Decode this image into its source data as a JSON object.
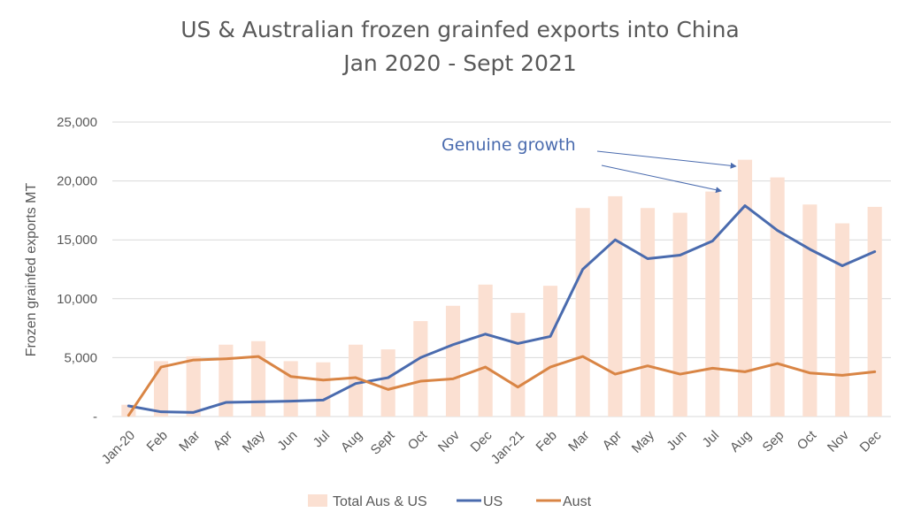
{
  "chart_data": {
    "type": "bar",
    "title": "US & Australian frozen grainfed exports into China",
    "subtitle": "Jan 2020 - Sept 2021",
    "xlabel": "",
    "ylabel": "Frozen grainfed exports MT",
    "ylim": [
      0,
      25000
    ],
    "ytick_labels": [
      "-",
      "5,000",
      "10,000",
      "15,000",
      "20,000",
      "25,000"
    ],
    "grid": true,
    "legend_position": "bottom",
    "categories": [
      "Jan-20",
      "Feb",
      "Mar",
      "Apr",
      "May",
      "Jun",
      "Jul",
      "Aug",
      "Sept",
      "Oct",
      "Nov",
      "Dec",
      "Jan-21",
      "Feb",
      "Mar",
      "Apr",
      "May",
      "Jun",
      "Jul",
      "Aug",
      "Sep",
      "Oct",
      "Nov",
      "Dec"
    ],
    "series": [
      {
        "name": "Total Aus & US",
        "type": "bar",
        "color": "#FBE0D2",
        "values": [
          1000,
          4700,
          5100,
          6100,
          6400,
          4700,
          4600,
          6100,
          5700,
          8100,
          9400,
          11200,
          8800,
          11100,
          17700,
          18700,
          17700,
          17300,
          19100,
          21800,
          20300,
          18000,
          16400,
          17800
        ]
      },
      {
        "name": "US",
        "type": "line",
        "color": "#4A6BAE",
        "values": [
          900,
          400,
          350,
          1200,
          1250,
          1300,
          1400,
          2800,
          3300,
          5000,
          6100,
          7000,
          6200,
          6800,
          12500,
          15000,
          13400,
          13700,
          14900,
          17900,
          15800,
          14200,
          12800,
          14000
        ]
      },
      {
        "name": "Aust",
        "type": "line",
        "color": "#D98545",
        "values": [
          100,
          4200,
          4800,
          4900,
          5100,
          3400,
          3100,
          3300,
          2300,
          3000,
          3200,
          4200,
          2500,
          4200,
          5100,
          3600,
          4300,
          3600,
          4100,
          3800,
          4500,
          3700,
          3500,
          3800
        ]
      }
    ],
    "annotations": [
      {
        "text": "Genuine growth",
        "color": "#4A6BAE",
        "arrow_color": "#4A6BAE",
        "points_to_categories": [
          "Jul",
          "Aug"
        ]
      }
    ]
  }
}
